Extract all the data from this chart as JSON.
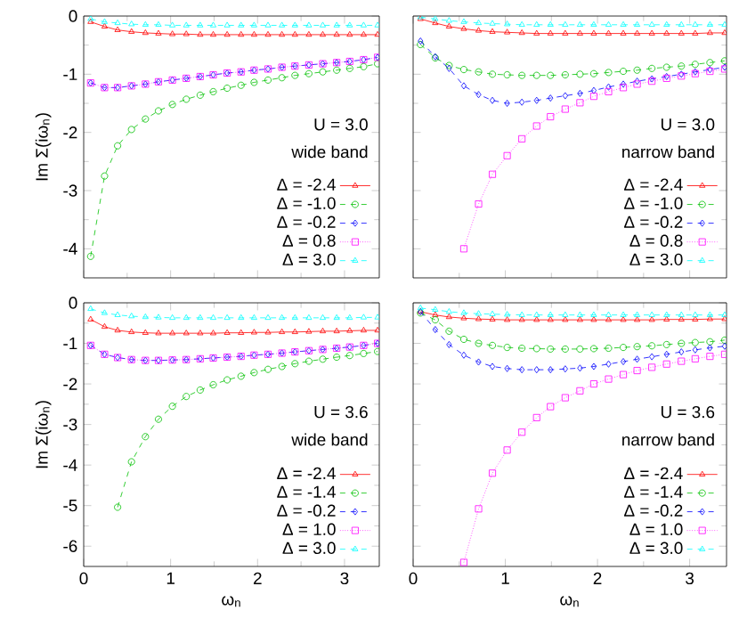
{
  "chart_data": [
    {
      "type": "line",
      "ylabel": "Im Σ(iω$_{n}$)",
      "annotations": [
        "U = 3.0",
        "wide band"
      ],
      "x": [
        0.08,
        0.24,
        0.39,
        0.55,
        0.71,
        0.86,
        1.02,
        1.18,
        1.34,
        1.49,
        1.65,
        1.81,
        1.96,
        2.12,
        2.28,
        2.43,
        2.59,
        2.75,
        2.91,
        3.06,
        3.22,
        3.38
      ],
      "xlim": [
        0,
        3.4
      ],
      "xticks": [
        0,
        1,
        2,
        3
      ],
      "ylim": [
        -4.5,
        0
      ],
      "yticks": [
        -4,
        -3,
        -2,
        -1,
        0
      ],
      "tick_labels": "y",
      "legend": "bottom right",
      "series": [
        {
          "name": "Δ = -2.4",
          "color": "#ff0000",
          "marker": "triangle",
          "line_style": "solid",
          "values": [
            -0.1,
            -0.18,
            -0.24,
            -0.27,
            -0.29,
            -0.3,
            -0.31,
            -0.31,
            -0.32,
            -0.32,
            -0.32,
            -0.32,
            -0.32,
            -0.32,
            -0.32,
            -0.32,
            -0.32,
            -0.32,
            -0.32,
            -0.32,
            -0.32,
            -0.32
          ]
        },
        {
          "name": "Δ = -1.0",
          "color": "#00c000",
          "marker": "circle",
          "line_style": "dashed",
          "values": [
            -4.13,
            -2.75,
            -2.23,
            -1.95,
            -1.77,
            -1.63,
            -1.52,
            -1.43,
            -1.36,
            -1.3,
            -1.24,
            -1.19,
            -1.14,
            -1.1,
            -1.06,
            -1.02,
            -0.99,
            -0.96,
            -0.93,
            -0.9,
            -0.87,
            -0.82
          ]
        },
        {
          "name": "Δ = -0.2",
          "color": "#0000ff",
          "marker": "diamond",
          "line_style": "dashed",
          "values": [
            -1.15,
            -1.23,
            -1.23,
            -1.2,
            -1.17,
            -1.13,
            -1.1,
            -1.07,
            -1.04,
            -1.01,
            -0.98,
            -0.96,
            -0.93,
            -0.91,
            -0.88,
            -0.86,
            -0.84,
            -0.82,
            -0.8,
            -0.78,
            -0.75,
            -0.71
          ]
        },
        {
          "name": "Δ = 0.8",
          "color": "#ff00ff",
          "marker": "square",
          "line_style": "dotted",
          "values": [
            -1.15,
            -1.23,
            -1.23,
            -1.2,
            -1.17,
            -1.13,
            -1.1,
            -1.07,
            -1.04,
            -1.01,
            -0.98,
            -0.96,
            -0.93,
            -0.91,
            -0.88,
            -0.86,
            -0.84,
            -0.82,
            -0.8,
            -0.78,
            -0.75,
            -0.71
          ]
        },
        {
          "name": "Δ = 3.0",
          "color": "#00ffff",
          "marker": "triangle",
          "line_style": "dashed",
          "values": [
            -0.05,
            -0.1,
            -0.12,
            -0.14,
            -0.15,
            -0.15,
            -0.16,
            -0.16,
            -0.16,
            -0.16,
            -0.16,
            -0.16,
            -0.16,
            -0.16,
            -0.16,
            -0.16,
            -0.16,
            -0.16,
            -0.16,
            -0.16,
            -0.16,
            -0.16
          ]
        }
      ]
    },
    {
      "type": "line",
      "annotations": [
        "U = 3.0",
        "narrow band"
      ],
      "x": [
        0.08,
        0.24,
        0.39,
        0.55,
        0.71,
        0.86,
        1.02,
        1.18,
        1.34,
        1.49,
        1.65,
        1.81,
        1.96,
        2.12,
        2.28,
        2.43,
        2.59,
        2.75,
        2.91,
        3.06,
        3.22,
        3.38
      ],
      "xlim": [
        0,
        3.4
      ],
      "xticks": [
        0,
        1,
        2,
        3
      ],
      "ylim": [
        -4.5,
        0
      ],
      "yticks": [
        -4,
        -3,
        -2,
        -1,
        0
      ],
      "tick_labels": false,
      "legend": "bottom right",
      "series": [
        {
          "name": "Δ = -2.4",
          "color": "#ff0000",
          "marker": "triangle",
          "line_style": "solid",
          "values": [
            -0.05,
            -0.12,
            -0.18,
            -0.22,
            -0.25,
            -0.27,
            -0.28,
            -0.29,
            -0.3,
            -0.3,
            -0.3,
            -0.3,
            -0.3,
            -0.3,
            -0.3,
            -0.3,
            -0.3,
            -0.3,
            -0.3,
            -0.3,
            -0.29,
            -0.29
          ]
        },
        {
          "name": "Δ = -1.0",
          "color": "#00c000",
          "marker": "circle",
          "line_style": "dashed",
          "values": [
            -0.49,
            -0.72,
            -0.85,
            -0.92,
            -0.96,
            -1.0,
            -1.01,
            -1.02,
            -1.02,
            -1.02,
            -1.01,
            -1.0,
            -0.99,
            -0.97,
            -0.95,
            -0.93,
            -0.9,
            -0.88,
            -0.86,
            -0.83,
            -0.8,
            -0.77
          ]
        },
        {
          "name": "Δ = -0.2",
          "color": "#0000ff",
          "marker": "diamond",
          "line_style": "dashed",
          "values": [
            -0.43,
            -0.7,
            -0.9,
            -1.2,
            -1.35,
            -1.45,
            -1.5,
            -1.48,
            -1.45,
            -1.41,
            -1.37,
            -1.33,
            -1.28,
            -1.22,
            -1.17,
            -1.12,
            -1.08,
            -1.04,
            -1.0,
            -0.96,
            -0.92,
            -0.88
          ]
        },
        {
          "name": "Δ = 0.8",
          "color": "#ff00ff",
          "marker": "square",
          "line_style": "dotted",
          "values": [
            null,
            null,
            null,
            -4.0,
            -3.23,
            -2.72,
            -2.4,
            -2.11,
            -1.89,
            -1.73,
            -1.6,
            -1.49,
            -1.38,
            -1.3,
            -1.23,
            -1.17,
            -1.12,
            -1.07,
            -1.03,
            -0.99,
            -0.95,
            -0.91
          ]
        },
        {
          "name": "Δ = 3.0",
          "color": "#00ffff",
          "marker": "triangle",
          "line_style": "dashed",
          "values": [
            -0.02,
            -0.05,
            -0.08,
            -0.1,
            -0.12,
            -0.13,
            -0.14,
            -0.15,
            -0.15,
            -0.15,
            -0.15,
            -0.15,
            -0.15,
            -0.15,
            -0.15,
            -0.15,
            -0.15,
            -0.15,
            -0.15,
            -0.15,
            -0.15,
            -0.15
          ]
        }
      ]
    },
    {
      "type": "line",
      "xlabel": "ω$_{n}$",
      "ylabel": "Im Σ(iω$_{n}$)",
      "annotations": [
        "U = 3.6",
        "wide band"
      ],
      "x": [
        0.08,
        0.24,
        0.39,
        0.55,
        0.71,
        0.86,
        1.02,
        1.18,
        1.34,
        1.49,
        1.65,
        1.81,
        1.96,
        2.12,
        2.28,
        2.43,
        2.59,
        2.75,
        2.91,
        3.06,
        3.22,
        3.38
      ],
      "xlim": [
        0,
        3.4
      ],
      "xticks": [
        0,
        1,
        2,
        3
      ],
      "ylim": [
        -6.5,
        0
      ],
      "yticks": [
        -6,
        -5,
        -4,
        -3,
        -2,
        -1,
        0
      ],
      "legend": "bottom right",
      "series": [
        {
          "name": "Δ = -2.4",
          "color": "#ff0000",
          "marker": "triangle",
          "line_style": "solid",
          "values": [
            -0.41,
            -0.59,
            -0.68,
            -0.72,
            -0.74,
            -0.75,
            -0.75,
            -0.75,
            -0.75,
            -0.75,
            -0.74,
            -0.74,
            -0.73,
            -0.73,
            -0.72,
            -0.72,
            -0.71,
            -0.7,
            -0.7,
            -0.69,
            -0.68,
            -0.68
          ]
        },
        {
          "name": "Δ = -1.4",
          "color": "#00c000",
          "marker": "circle",
          "line_style": "dashed",
          "values": [
            null,
            null,
            -5.04,
            -3.92,
            -3.3,
            -2.87,
            -2.55,
            -2.31,
            -2.15,
            -2.02,
            -1.9,
            -1.81,
            -1.72,
            -1.64,
            -1.57,
            -1.5,
            -1.44,
            -1.39,
            -1.34,
            -1.3,
            -1.25,
            -1.2
          ]
        },
        {
          "name": "Δ = -0.2",
          "color": "#0000ff",
          "marker": "diamond",
          "line_style": "dashed",
          "values": [
            -1.05,
            -1.27,
            -1.35,
            -1.4,
            -1.42,
            -1.42,
            -1.41,
            -1.4,
            -1.38,
            -1.36,
            -1.34,
            -1.32,
            -1.29,
            -1.27,
            -1.24,
            -1.21,
            -1.18,
            -1.15,
            -1.12,
            -1.09,
            -1.05,
            -1.0
          ]
        },
        {
          "name": "Δ = 1.0",
          "color": "#ff00ff",
          "marker": "square",
          "line_style": "dotted",
          "values": [
            -1.05,
            -1.27,
            -1.35,
            -1.4,
            -1.42,
            -1.42,
            -1.41,
            -1.4,
            -1.38,
            -1.36,
            -1.34,
            -1.32,
            -1.29,
            -1.27,
            -1.24,
            -1.21,
            -1.18,
            -1.15,
            -1.12,
            -1.09,
            -1.05,
            -1.0
          ]
        },
        {
          "name": "Δ = 3.0",
          "color": "#00ffff",
          "marker": "triangle",
          "line_style": "dashed",
          "values": [
            -0.15,
            -0.25,
            -0.3,
            -0.33,
            -0.35,
            -0.36,
            -0.37,
            -0.37,
            -0.37,
            -0.37,
            -0.37,
            -0.37,
            -0.37,
            -0.37,
            -0.37,
            -0.37,
            -0.37,
            -0.37,
            -0.37,
            -0.37,
            -0.36,
            -0.36
          ]
        }
      ]
    },
    {
      "type": "line",
      "xlabel": "ω$_{n}$",
      "annotations": [
        "U = 3.6",
        "narrow band"
      ],
      "x": [
        0.08,
        0.24,
        0.39,
        0.55,
        0.71,
        0.86,
        1.02,
        1.18,
        1.34,
        1.49,
        1.65,
        1.81,
        1.96,
        2.12,
        2.28,
        2.43,
        2.59,
        2.75,
        2.91,
        3.06,
        3.22,
        3.38
      ],
      "xlim": [
        0,
        3.4
      ],
      "xticks": [
        0,
        1,
        2,
        3
      ],
      "ylim": [
        -6.5,
        0
      ],
      "yticks": [
        -6,
        -5,
        -4,
        -3,
        -2,
        -1,
        0
      ],
      "tick_labels": "x",
      "legend": "bottom right",
      "series": [
        {
          "name": "Δ = -2.4",
          "color": "#ff0000",
          "marker": "triangle",
          "line_style": "solid",
          "values": [
            -0.22,
            -0.3,
            -0.35,
            -0.38,
            -0.4,
            -0.41,
            -0.42,
            -0.42,
            -0.42,
            -0.42,
            -0.42,
            -0.42,
            -0.42,
            -0.42,
            -0.42,
            -0.42,
            -0.42,
            -0.41,
            -0.41,
            -0.41,
            -0.4,
            -0.4
          ]
        },
        {
          "name": "Δ = -1.4",
          "color": "#00c000",
          "marker": "circle",
          "line_style": "dashed",
          "values": [
            -0.25,
            -0.42,
            -0.7,
            -0.9,
            -1.0,
            -1.05,
            -1.1,
            -1.12,
            -1.13,
            -1.14,
            -1.14,
            -1.14,
            -1.13,
            -1.12,
            -1.1,
            -1.08,
            -1.06,
            -1.03,
            -1.0,
            -0.98,
            -0.96,
            -0.92
          ]
        },
        {
          "name": "Δ = -0.2",
          "color": "#0000ff",
          "marker": "diamond",
          "line_style": "dashed",
          "values": [
            -0.22,
            -0.66,
            -1.03,
            -1.29,
            -1.46,
            -1.57,
            -1.62,
            -1.65,
            -1.65,
            -1.65,
            -1.63,
            -1.61,
            -1.57,
            -1.51,
            -1.45,
            -1.39,
            -1.33,
            -1.27,
            -1.21,
            -1.16,
            -1.11,
            -1.07
          ]
        },
        {
          "name": "Δ = 1.0",
          "color": "#ff00ff",
          "marker": "square",
          "line_style": "dotted",
          "values": [
            null,
            null,
            null,
            -6.4,
            -5.08,
            -4.2,
            -3.63,
            -3.19,
            -2.83,
            -2.56,
            -2.34,
            -2.17,
            -2.0,
            -1.88,
            -1.77,
            -1.67,
            -1.59,
            -1.51,
            -1.44,
            -1.38,
            -1.32,
            -1.27
          ]
        },
        {
          "name": "Δ = 3.0",
          "color": "#00ffff",
          "marker": "triangle",
          "line_style": "dashed",
          "values": [
            -0.13,
            -0.17,
            -0.22,
            -0.25,
            -0.27,
            -0.28,
            -0.29,
            -0.3,
            -0.3,
            -0.3,
            -0.3,
            -0.3,
            -0.3,
            -0.3,
            -0.3,
            -0.3,
            -0.3,
            -0.3,
            -0.3,
            -0.3,
            -0.3,
            -0.3
          ]
        }
      ]
    }
  ]
}
